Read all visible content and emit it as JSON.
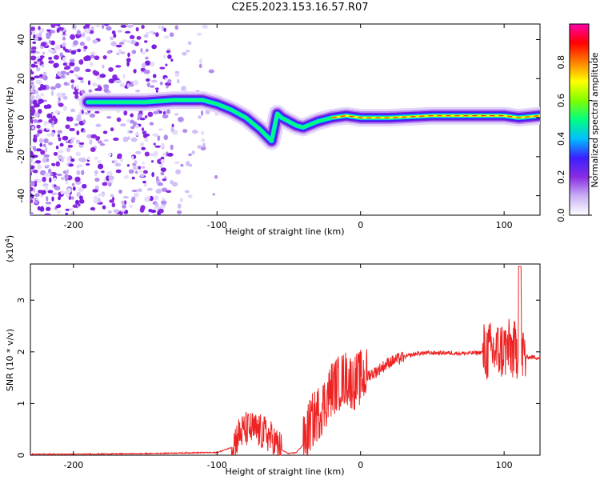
{
  "title": "C2E5.2023.153.16.57.R07",
  "chart_data": [
    {
      "type": "heatmap",
      "xlabel": "Height of straight line (km)",
      "ylabel": "Frequency (Hz)",
      "xlim": [
        -230,
        125
      ],
      "ylim": [
        -50,
        48
      ],
      "xticks": [
        -200,
        -100,
        0,
        100
      ],
      "yticks": [
        -40,
        -20,
        0,
        20,
        40
      ],
      "colorbar": {
        "label": "Normalized spectral amplitude",
        "range": [
          0,
          1
        ],
        "ticks": [
          "0.0",
          "0.2",
          "0.4",
          "0.6",
          "0.8"
        ],
        "colors": [
          "#ffffff",
          "#c9b0f5",
          "#8a2be2",
          "#3b1fff",
          "#00bfff",
          "#00ff80",
          "#80ff00",
          "#ffff00",
          "#ff8000",
          "#ff0000",
          "#ff00aa"
        ]
      },
      "ridge": {
        "x": [
          -190,
          -170,
          -150,
          -130,
          -120,
          -110,
          -100,
          -90,
          -80,
          -70,
          -62,
          -58,
          -55,
          -50,
          -45,
          -40,
          -30,
          -20,
          -10,
          0,
          20,
          50,
          80,
          100,
          110,
          125
        ],
        "y": [
          8,
          8,
          8,
          9,
          9,
          9,
          7,
          4,
          0,
          -6,
          -12,
          2,
          0,
          -2,
          -4,
          -5,
          -2,
          0,
          1,
          0,
          0,
          1,
          1,
          1,
          0,
          1
        ]
      }
    },
    {
      "type": "line",
      "xlabel": "Height of straight line (km)",
      "ylabel": "SNR (10 * v/v)",
      "ylabel_scale": "(x10",
      "ylabel_scale_exp": "4",
      "ylabel_scale_close": ")",
      "xlim": [
        -230,
        125
      ],
      "ylim": [
        0,
        3.7
      ],
      "xticks": [
        -200,
        -100,
        0,
        100
      ],
      "yticks": [
        0,
        1,
        2,
        3
      ],
      "series": [
        {
          "color": "#ee2222",
          "x": [
            -230,
            -200,
            -150,
            -110,
            -100,
            -90,
            -85,
            -80,
            -75,
            -70,
            -65,
            -60,
            -55,
            -50,
            -45,
            -40,
            -35,
            -30,
            -25,
            -20,
            -15,
            -10,
            -5,
            0,
            5,
            10,
            20,
            30,
            40,
            50,
            60,
            70,
            80,
            90,
            95,
            100,
            105,
            108,
            110,
            112,
            115,
            120,
            125
          ],
          "y": [
            0.02,
            0.02,
            0.03,
            0.05,
            0.05,
            0.15,
            0.4,
            0.5,
            0.5,
            0.45,
            0.4,
            0.25,
            0.1,
            0.03,
            0.05,
            0.2,
            0.6,
            0.8,
            1.0,
            1.3,
            1.4,
            1.5,
            1.4,
            1.5,
            1.55,
            1.6,
            1.8,
            1.9,
            1.97,
            1.98,
            1.98,
            1.97,
            1.98,
            2.0,
            2.0,
            2.05,
            2.05,
            2.0,
            2.1,
            2.0,
            1.9,
            1.9,
            1.88
          ]
        }
      ]
    }
  ]
}
